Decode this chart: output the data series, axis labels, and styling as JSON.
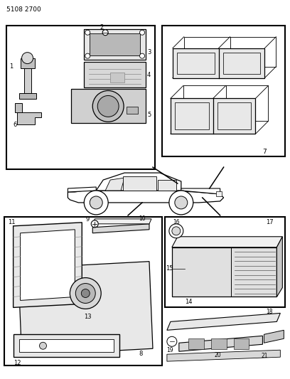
{
  "title": "5108 2700",
  "background_color": "#ffffff",
  "line_color": "#000000",
  "part_numbers": [
    "1",
    "2",
    "3",
    "4",
    "5",
    "6",
    "7",
    "8",
    "9",
    "10",
    "11",
    "12",
    "13",
    "14",
    "15",
    "16",
    "17",
    "18",
    "19",
    "20",
    "21"
  ]
}
